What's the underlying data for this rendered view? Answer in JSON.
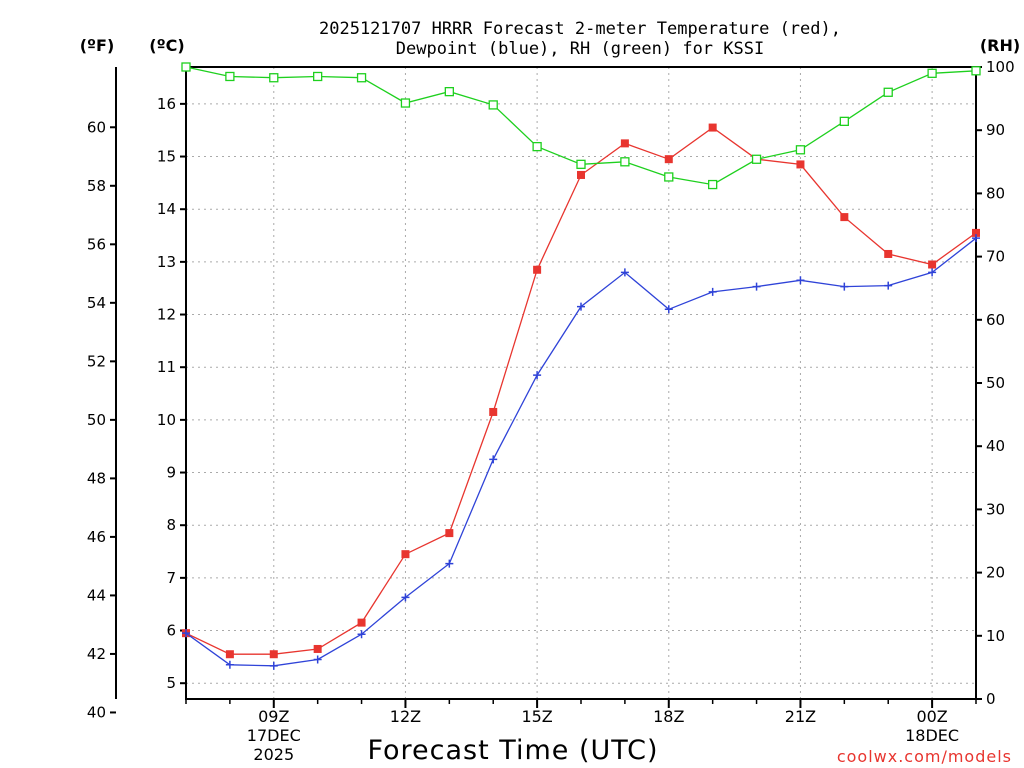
{
  "title_lines": [
    "2025121707 HRRR Forecast 2-meter Temperature (red),",
    "Dewpoint (blue), RH (green) for KSSI"
  ],
  "credit": "coolwx.com/models",
  "colors": {
    "temp": "#e8352f",
    "dewpoint": "#2f43d8",
    "rh": "#1ed01e",
    "grid": "#aaaaaa"
  },
  "chart_data": {
    "type": "line",
    "title": "2025121707 HRRR Forecast 2-meter Temperature (red), Dewpoint (blue), RH (green) for KSSI",
    "xlabel": "Forecast Time (UTC)",
    "x_hours": [
      7,
      8,
      9,
      10,
      11,
      12,
      13,
      14,
      15,
      16,
      17,
      18,
      19,
      20,
      21,
      22,
      23,
      24,
      25
    ],
    "xlim": [
      7,
      25
    ],
    "x_ticks": [
      {
        "hour": 9,
        "lines": [
          "09Z",
          "17DEC",
          "2025"
        ]
      },
      {
        "hour": 12,
        "lines": [
          "12Z"
        ]
      },
      {
        "hour": 15,
        "lines": [
          "15Z"
        ]
      },
      {
        "hour": 18,
        "lines": [
          "18Z"
        ]
      },
      {
        "hour": 21,
        "lines": [
          "21Z"
        ]
      },
      {
        "hour": 24,
        "lines": [
          "00Z",
          "18DEC"
        ]
      }
    ],
    "left_axis_c": {
      "label": "(ºC)",
      "range": [
        4.7,
        16.7
      ],
      "ticks": [
        5,
        6,
        7,
        8,
        9,
        10,
        11,
        12,
        13,
        14,
        15,
        16
      ]
    },
    "left_axis_f": {
      "label": "(ºF)",
      "ticks": [
        40,
        42,
        44,
        46,
        48,
        50,
        52,
        54,
        56,
        58,
        60
      ]
    },
    "right_axis_rh": {
      "label": "(RH)",
      "range": [
        0,
        100
      ],
      "ticks": [
        0,
        10,
        20,
        30,
        40,
        50,
        60,
        70,
        80,
        90,
        100
      ]
    },
    "series": [
      {
        "name": "Temperature",
        "unit": "C",
        "axis": "c",
        "marker": "filled-square",
        "color": "#e8352f",
        "values": [
          5.95,
          5.55,
          5.55,
          5.65,
          6.15,
          7.45,
          7.85,
          10.15,
          12.85,
          14.65,
          15.25,
          14.95,
          15.55,
          14.95,
          14.85,
          13.85,
          13.15,
          12.95,
          13.55
        ]
      },
      {
        "name": "Dewpoint",
        "unit": "C",
        "axis": "c",
        "marker": "plus",
        "color": "#2f43d8",
        "values": [
          5.95,
          5.35,
          5.33,
          5.45,
          5.93,
          6.63,
          7.27,
          9.25,
          10.85,
          12.15,
          12.8,
          12.1,
          12.43,
          12.53,
          12.65,
          12.53,
          12.55,
          12.8,
          13.45
        ]
      },
      {
        "name": "RH",
        "unit": "%",
        "axis": "rh",
        "marker": "open-square",
        "color": "#1ed01e",
        "values": [
          100,
          98.5,
          98.3,
          98.5,
          98.3,
          94.3,
          96.1,
          94.0,
          87.4,
          84.6,
          85.0,
          82.6,
          81.4,
          85.4,
          86.9,
          91.4,
          96.0,
          99.0,
          99.4
        ]
      }
    ]
  }
}
